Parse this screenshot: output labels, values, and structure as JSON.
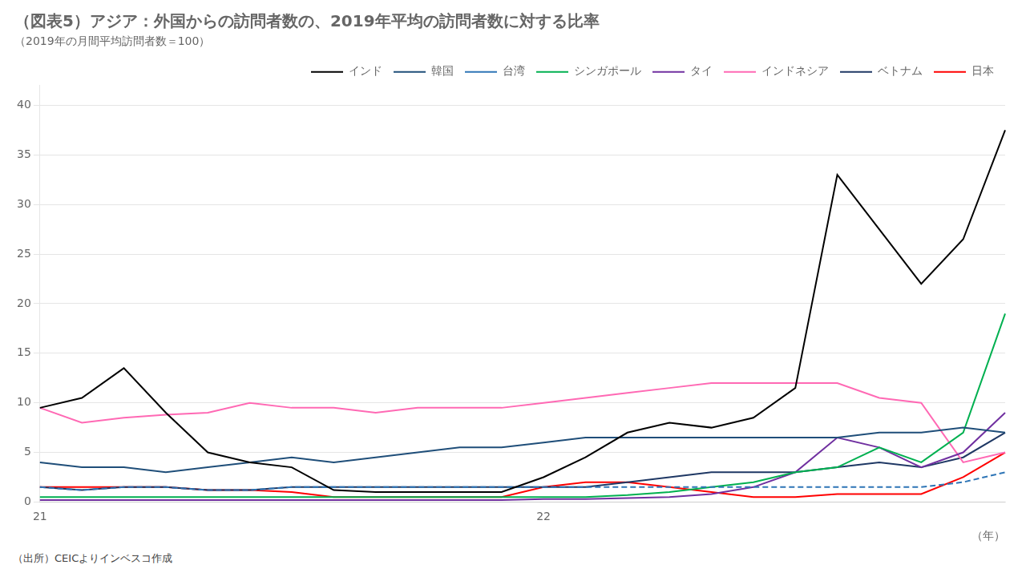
{
  "chart_data": {
    "type": "line",
    "title": "（図表5）アジア：外国からの訪問者数の、2019年平均の訪問者数に対する比率",
    "subtitle": "（2019年の月間平均訪問者数＝100）",
    "source": "（出所）CEICよりインベスコ作成",
    "xlabel": "（年）",
    "categories": [
      "21",
      null,
      null,
      null,
      null,
      null,
      null,
      null,
      null,
      null,
      null,
      null,
      "22",
      null,
      null,
      null,
      null,
      null,
      null,
      null,
      null,
      null,
      null,
      null
    ],
    "series": [
      {
        "name": "インド",
        "color": "#000000",
        "line_style": "solid",
        "values": [
          9.5,
          10.5,
          13.5,
          9.0,
          5.0,
          4.0,
          3.5,
          1.2,
          1.0,
          1.0,
          1.0,
          1.0,
          2.5,
          4.5,
          7.0,
          8.0,
          7.5,
          8.5,
          11.5,
          33.0,
          27.5,
          22.0,
          26.5,
          37.5
        ]
      },
      {
        "name": "韓国",
        "color": "#1f4e79",
        "line_style": "solid",
        "values": [
          4.0,
          3.5,
          3.5,
          3.0,
          3.5,
          4.0,
          4.5,
          4.0,
          4.5,
          5.0,
          5.5,
          5.5,
          6.0,
          6.5,
          6.5,
          6.5,
          6.5,
          6.5,
          6.5,
          6.5,
          7.0,
          7.0,
          7.5,
          7.0
        ]
      },
      {
        "name": "台湾",
        "color": "#2e75b6",
        "line_style": "dashed",
        "values": [
          1.5,
          1.2,
          1.5,
          1.5,
          1.2,
          1.2,
          1.5,
          1.5,
          1.5,
          1.5,
          1.5,
          1.5,
          1.5,
          1.5,
          1.5,
          1.5,
          1.5,
          1.5,
          1.5,
          1.5,
          1.5,
          1.5,
          2.0,
          3.0
        ]
      },
      {
        "name": "シンガポール",
        "color": "#00b050",
        "line_style": "solid",
        "values": [
          0.5,
          0.5,
          0.5,
          0.5,
          0.5,
          0.5,
          0.5,
          0.5,
          0.5,
          0.5,
          0.5,
          0.5,
          0.5,
          0.5,
          0.7,
          1.0,
          1.5,
          2.0,
          3.0,
          3.5,
          5.5,
          4.0,
          7.0,
          19.0
        ]
      },
      {
        "name": "タイ",
        "color": "#7030a0",
        "line_style": "solid",
        "values": [
          0.2,
          0.2,
          0.2,
          0.2,
          0.2,
          0.2,
          0.2,
          0.2,
          0.2,
          0.2,
          0.2,
          0.2,
          0.3,
          0.3,
          0.4,
          0.5,
          0.8,
          1.5,
          3.0,
          6.5,
          5.5,
          3.5,
          5.0,
          9.0
        ]
      },
      {
        "name": "インドネシア",
        "color": "#ff69b4",
        "line_style": "solid",
        "values": [
          9.5,
          8.0,
          8.5,
          8.8,
          9.0,
          10.0,
          9.5,
          9.5,
          9.0,
          9.5,
          9.5,
          9.5,
          10.0,
          10.5,
          11.0,
          11.5,
          12.0,
          12.0,
          12.0,
          12.0,
          10.5,
          10.0,
          4.0,
          5.0
        ]
      },
      {
        "name": "ベトナム",
        "color": "#1f3864",
        "line_style": "solid",
        "values": [
          1.5,
          1.2,
          1.5,
          1.5,
          1.2,
          1.2,
          1.5,
          1.5,
          1.5,
          1.5,
          1.5,
          1.5,
          1.5,
          1.5,
          2.0,
          2.5,
          3.0,
          3.0,
          3.0,
          3.5,
          4.0,
          3.5,
          4.5,
          7.0
        ]
      },
      {
        "name": "日本",
        "color": "#ff0000",
        "line_style": "solid",
        "values": [
          1.5,
          1.5,
          1.5,
          1.5,
          1.2,
          1.2,
          1.0,
          0.5,
          0.5,
          0.5,
          0.5,
          0.5,
          1.5,
          2.0,
          2.0,
          1.5,
          1.0,
          0.5,
          0.5,
          0.8,
          0.8,
          0.8,
          2.5,
          5.0
        ]
      }
    ],
    "ylim": [
      0,
      42
    ],
    "yticks": [
      0,
      5,
      10,
      15,
      20,
      25,
      30,
      35,
      40
    ],
    "grid": true,
    "legend": "upper right"
  }
}
